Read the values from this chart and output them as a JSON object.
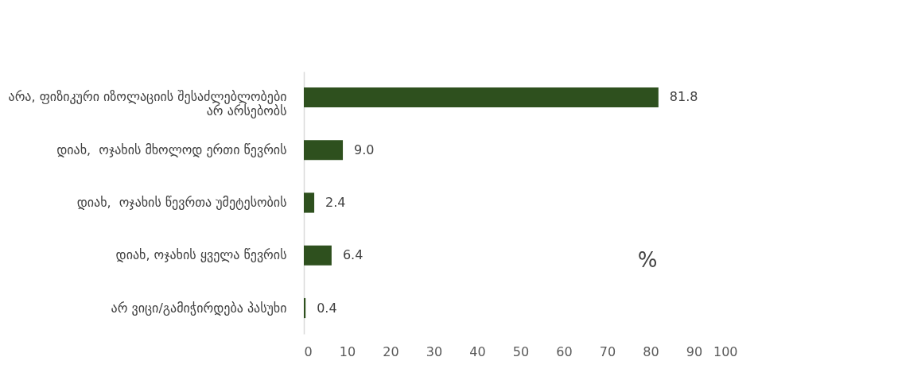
{
  "chart_data": {
    "type": "bar",
    "orientation": "horizontal",
    "categories": [
      "არა, ფიზიკური იზოლაციის შესაძლებლობები არ არსებობს",
      "დიახ,  ოჯახის მხოლოდ ერთი წევრის",
      "დიახ,  ოჯახის წევრთა უმეტესობის",
      "დიახ, ოჯახის ყველა წევრის",
      "არ ვიცი/გამიჭირდება პასუხი"
    ],
    "values": [
      81.8,
      9.0,
      2.4,
      6.4,
      0.4
    ],
    "value_labels": [
      "81.8",
      "9.0",
      "2.4",
      "6.4",
      "0.4"
    ],
    "color": "#2e501e",
    "xlim": [
      0,
      100
    ],
    "xticks": [
      0,
      10,
      20,
      30,
      40,
      50,
      60,
      70,
      80,
      90,
      100
    ],
    "grid": false,
    "annotations": [
      "%"
    ]
  }
}
